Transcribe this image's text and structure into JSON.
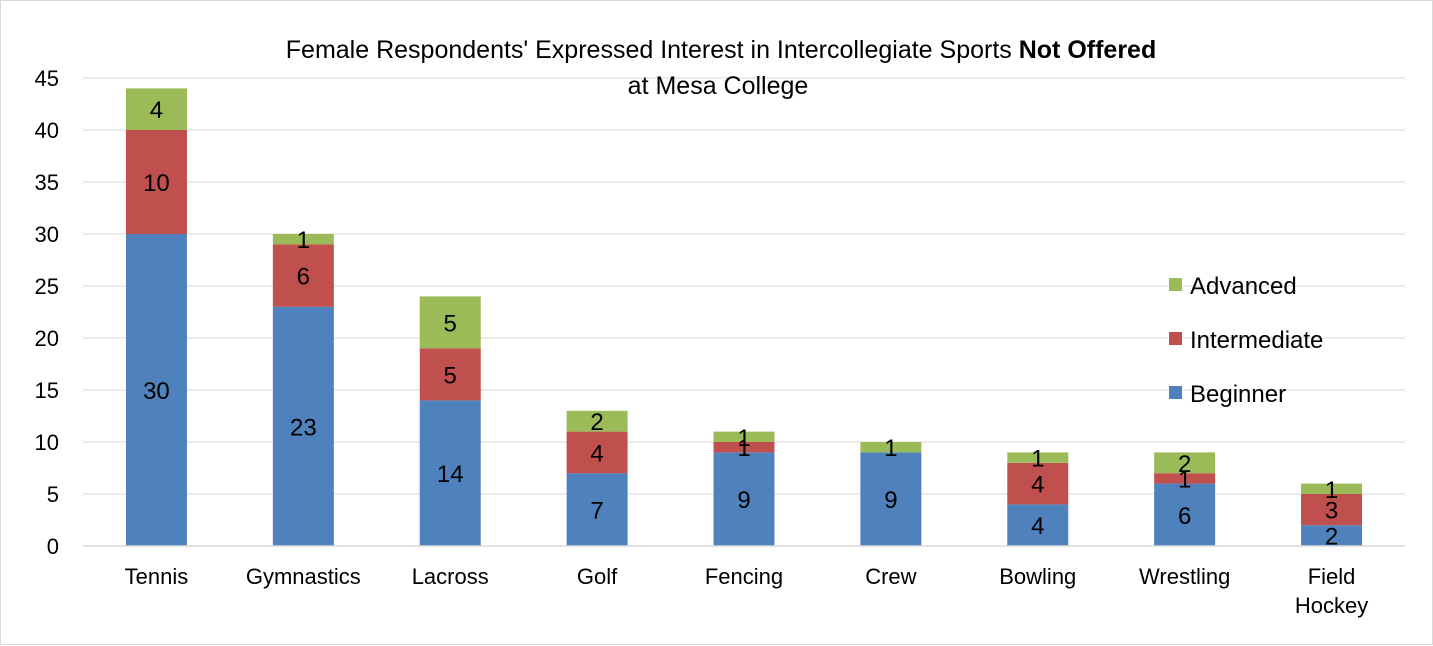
{
  "chart_data": {
    "type": "bar",
    "stacked": true,
    "title_parts": [
      "Female Respondents' Expressed Interest in Intercollegiate Sports ",
      "Not Offered",
      "at Mesa College"
    ],
    "categories": [
      [
        "Tennis"
      ],
      [
        "Gymnastics"
      ],
      [
        "Lacross"
      ],
      [
        "Golf"
      ],
      [
        "Fencing"
      ],
      [
        "Crew"
      ],
      [
        "Bowling"
      ],
      [
        "Wrestling"
      ],
      [
        "Field",
        "Hockey"
      ]
    ],
    "series": [
      {
        "name": "Beginner",
        "color": "#4f81bd",
        "values": [
          30,
          23,
          14,
          7,
          9,
          9,
          4,
          6,
          2
        ]
      },
      {
        "name": "Intermediate",
        "color": "#c0504d",
        "values": [
          10,
          6,
          5,
          4,
          1,
          0,
          4,
          1,
          3
        ]
      },
      {
        "name": "Advanced",
        "color": "#9bbb59",
        "values": [
          4,
          1,
          5,
          2,
          1,
          1,
          1,
          2,
          1
        ]
      }
    ],
    "ylim": [
      0,
      45
    ],
    "yticks": [
      0,
      5,
      10,
      15,
      20,
      25,
      30,
      35,
      40,
      45
    ],
    "grid": true,
    "legend_position": "right"
  }
}
